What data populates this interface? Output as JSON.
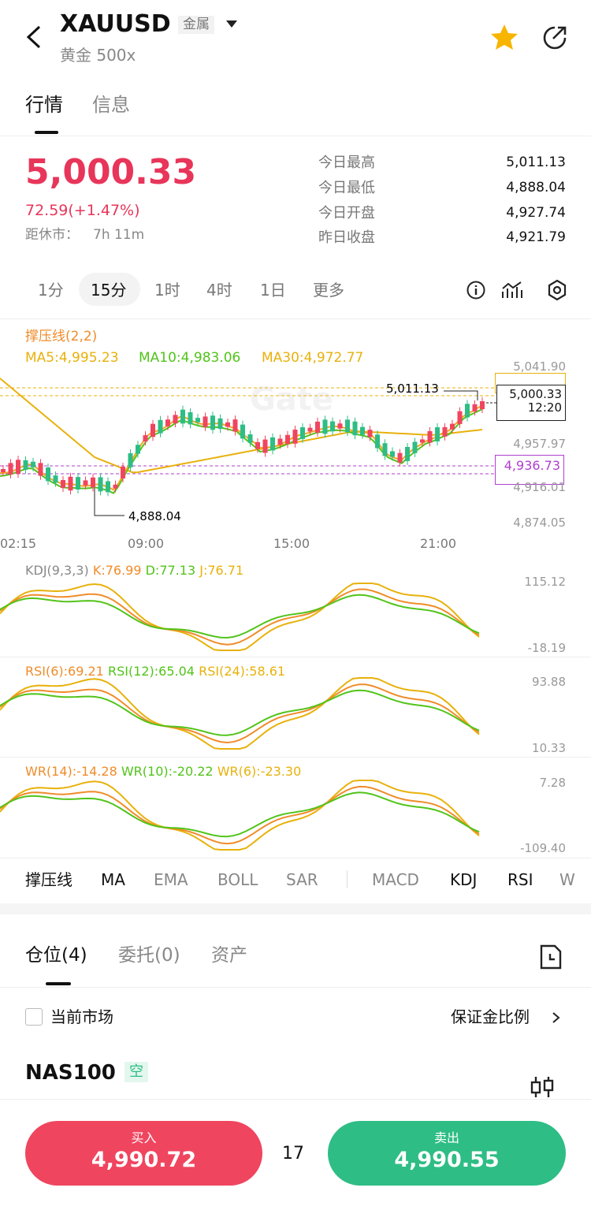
{
  "header": {
    "symbol": "XAUUSD",
    "tag": "金属",
    "subtitle": "黄金 500x"
  },
  "tabs": [
    "行情",
    "信息"
  ],
  "quote": {
    "price": "5,000.33",
    "change": "72.59(+1.47%)",
    "close_label": "距休市：",
    "close_time": "7h 11m",
    "stats": [
      {
        "label": "今日最高",
        "value": "5,011.13"
      },
      {
        "label": "今日最低",
        "value": "4,888.04"
      },
      {
        "label": "今日开盘",
        "value": "4,927.74"
      },
      {
        "label": "昨日收盘",
        "value": "4,921.79"
      }
    ]
  },
  "intervals": [
    "1分",
    "15分",
    "1时",
    "4时",
    "1日",
    "更多"
  ],
  "main_chart": {
    "indicator": "撑压线(2,2)",
    "ma": [
      "MA5:4,995.23",
      "MA10:4,983.06",
      "MA30:4,972.77"
    ],
    "axis_labels": [
      "5,041.90",
      "4,957.97",
      "4,916.01",
      "4,874.05"
    ],
    "high_label": "5,011.13",
    "low_label": "4,888.04",
    "current_price": "5,000.33",
    "countdown": "12:20",
    "support": "4,936.73",
    "watermark": "Gate",
    "times": [
      "02:15",
      "09:00",
      "15:00",
      "21:00"
    ]
  },
  "kdj": {
    "title": "KDJ(9,3,3)",
    "k": "K:76.99",
    "d": "D:77.13",
    "j": "J:76.71",
    "axis_labels": [
      "115.12",
      "-18.19"
    ]
  },
  "rsi": {
    "r6": "RSI(6):69.21",
    "r12": "RSI(12):65.04",
    "r24": "RSI(24):58.61",
    "axis_labels": [
      "93.88",
      "10.33"
    ]
  },
  "wr": {
    "w14": "WR(14):-14.28",
    "w10": "WR(10):-20.22",
    "w6": "WR(6):-23.30",
    "axis_labels": [
      "7.28",
      "-109.40"
    ]
  },
  "indicator_tabs": [
    "撑压线",
    "MA",
    "EMA",
    "BOLL",
    "SAR",
    "MACD",
    "KDJ",
    "RSI",
    "W"
  ],
  "position_tabs": [
    "仓位(4)",
    "委托(0)",
    "资产"
  ],
  "filter": {
    "label": "当前市场",
    "ratio": "保证金比例"
  },
  "position": {
    "symbol": "NAS100",
    "side": "空"
  },
  "footer": {
    "buy_label": "买入",
    "buy_price": "4,990.72",
    "spread": "17",
    "sell_label": "卖出",
    "sell_price": "4,990.55"
  }
}
